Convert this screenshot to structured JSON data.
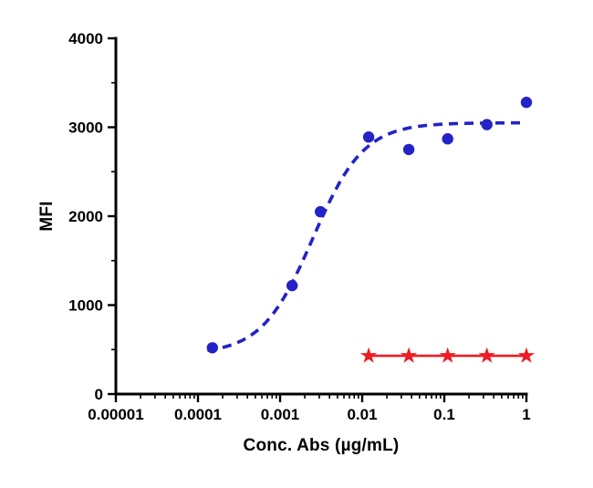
{
  "figure": {
    "kind": "dose-response-curve"
  },
  "chart_data": {
    "type": "scatter",
    "title": "",
    "xlabel": "Conc. Abs (µg/mL)",
    "ylabel": "MFI",
    "x_scale": "log10",
    "xlim": [
      1e-05,
      1
    ],
    "ylim": [
      0,
      4000
    ],
    "x_major_ticks": [
      1e-05,
      0.0001,
      0.001,
      0.01,
      0.1,
      1
    ],
    "x_tick_labels": [
      "0.00001",
      "0.0001",
      "0.001",
      "0.01",
      "0.1",
      "1"
    ],
    "y_major_ticks": [
      0,
      1000,
      2000,
      3000,
      4000
    ],
    "y_tick_labels": [
      "0",
      "1000",
      "2000",
      "3000",
      "4000"
    ],
    "y_minor_ticks": [
      500,
      1500,
      2500,
      3500
    ],
    "grid": false,
    "legend": "none",
    "series": [
      {
        "name": "series-1-blue-circles",
        "color": "#2323c8",
        "marker": "circle",
        "line": "dashed-sigmoid-fit",
        "x": [
          0.00015,
          0.0014,
          0.0031,
          0.012,
          0.037,
          0.11,
          0.33,
          1
        ],
        "y": [
          520,
          1220,
          2050,
          2890,
          2750,
          2870,
          3030,
          3280
        ],
        "fit": {
          "model": "4PL",
          "bottom": 450,
          "top": 3050,
          "ec50": 0.0025,
          "hill": 1.4,
          "x_start": 0.00013,
          "x_end": 1
        }
      },
      {
        "name": "series-2-red-stars",
        "color": "#ed1c24",
        "marker": "star",
        "line": "solid",
        "x": [
          0.012,
          0.037,
          0.11,
          0.33,
          1
        ],
        "y": [
          430,
          430,
          430,
          430,
          430
        ]
      }
    ]
  }
}
